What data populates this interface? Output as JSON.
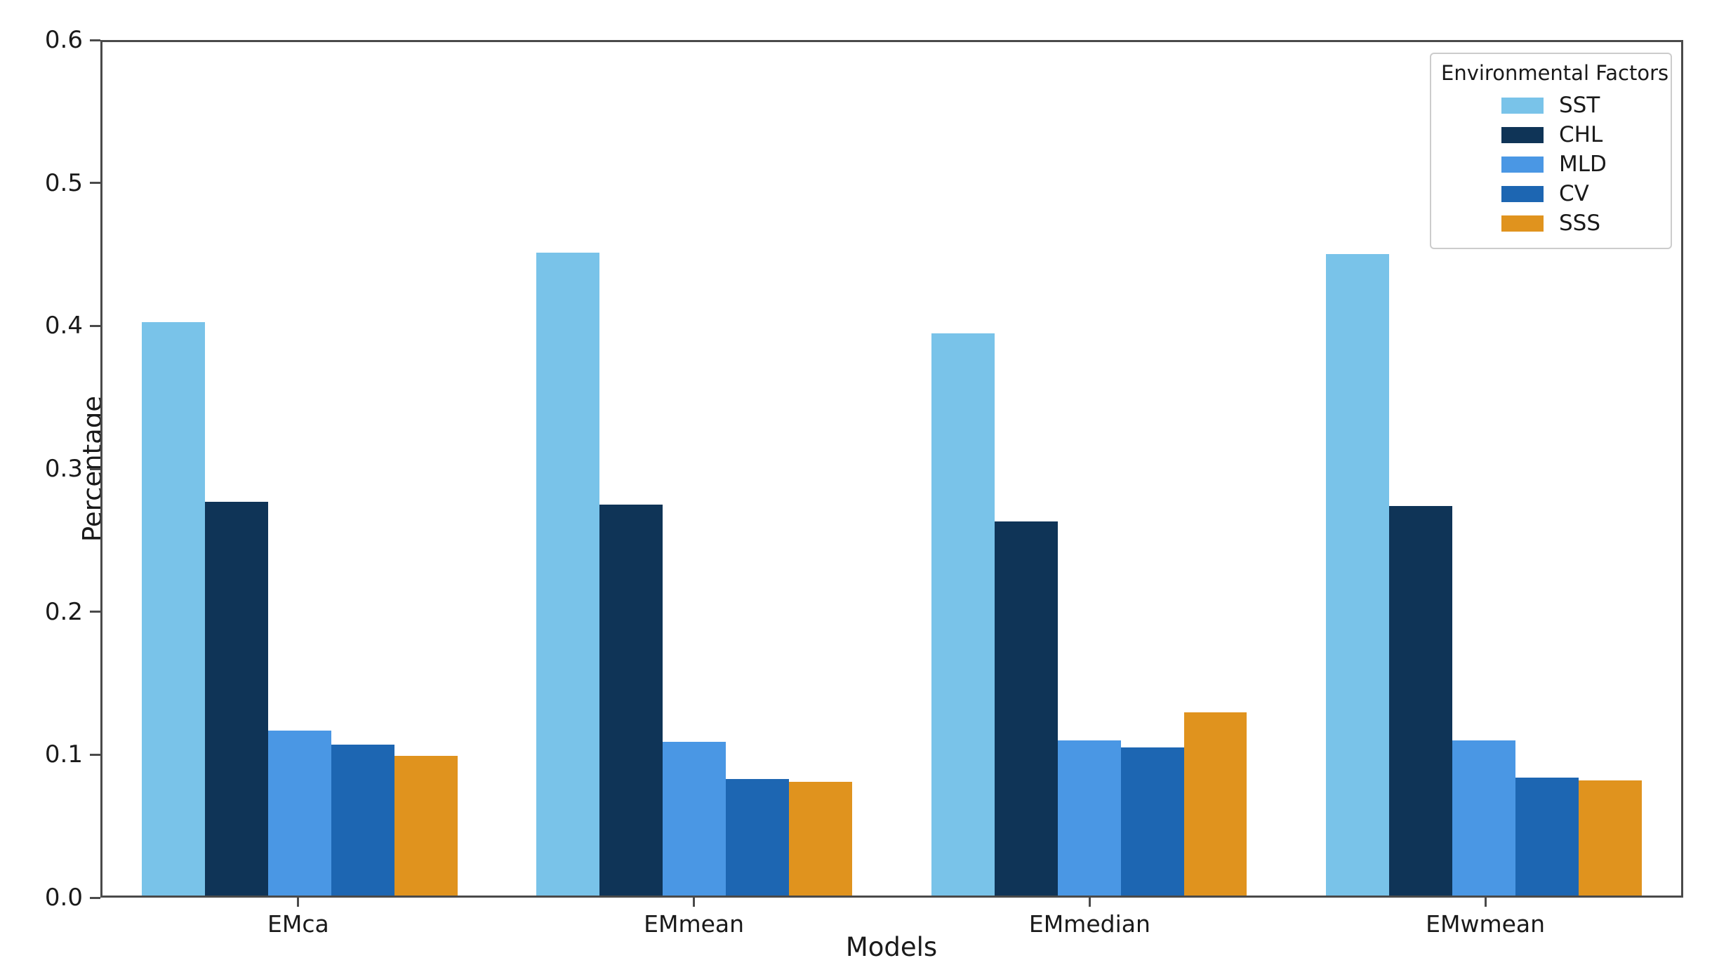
{
  "chart_data": {
    "type": "bar",
    "title": "",
    "xlabel": "Models",
    "ylabel": "Percentage",
    "ylim": [
      0,
      0.6
    ],
    "yticks": [
      0.0,
      0.1,
      0.2,
      0.3,
      0.4,
      0.5,
      0.6
    ],
    "categories": [
      "EMca",
      "EMmean",
      "EMmedian",
      "EMwmean"
    ],
    "grid": false,
    "legend": {
      "title": "Environmental Factors",
      "position": "upper-right"
    },
    "series": [
      {
        "name": "SST",
        "color": "#79c3e9",
        "values": [
          0.403,
          0.452,
          0.395,
          0.451
        ]
      },
      {
        "name": "CHL",
        "color": "#0f3457",
        "values": [
          0.277,
          0.275,
          0.263,
          0.274
        ]
      },
      {
        "name": "MLD",
        "color": "#4a97e4",
        "values": [
          0.116,
          0.108,
          0.109,
          0.109
        ]
      },
      {
        "name": "CV",
        "color": "#1d66b2",
        "values": [
          0.106,
          0.082,
          0.104,
          0.083
        ]
      },
      {
        "name": "SSS",
        "color": "#e0931e",
        "values": [
          0.098,
          0.08,
          0.129,
          0.081
        ]
      }
    ],
    "layout": {
      "group_fraction": 0.8
    }
  },
  "colors": {
    "spine": "#4a4a4a",
    "text": "#1a1a1a",
    "legend_border": "#cccccc",
    "background": "#ffffff"
  }
}
